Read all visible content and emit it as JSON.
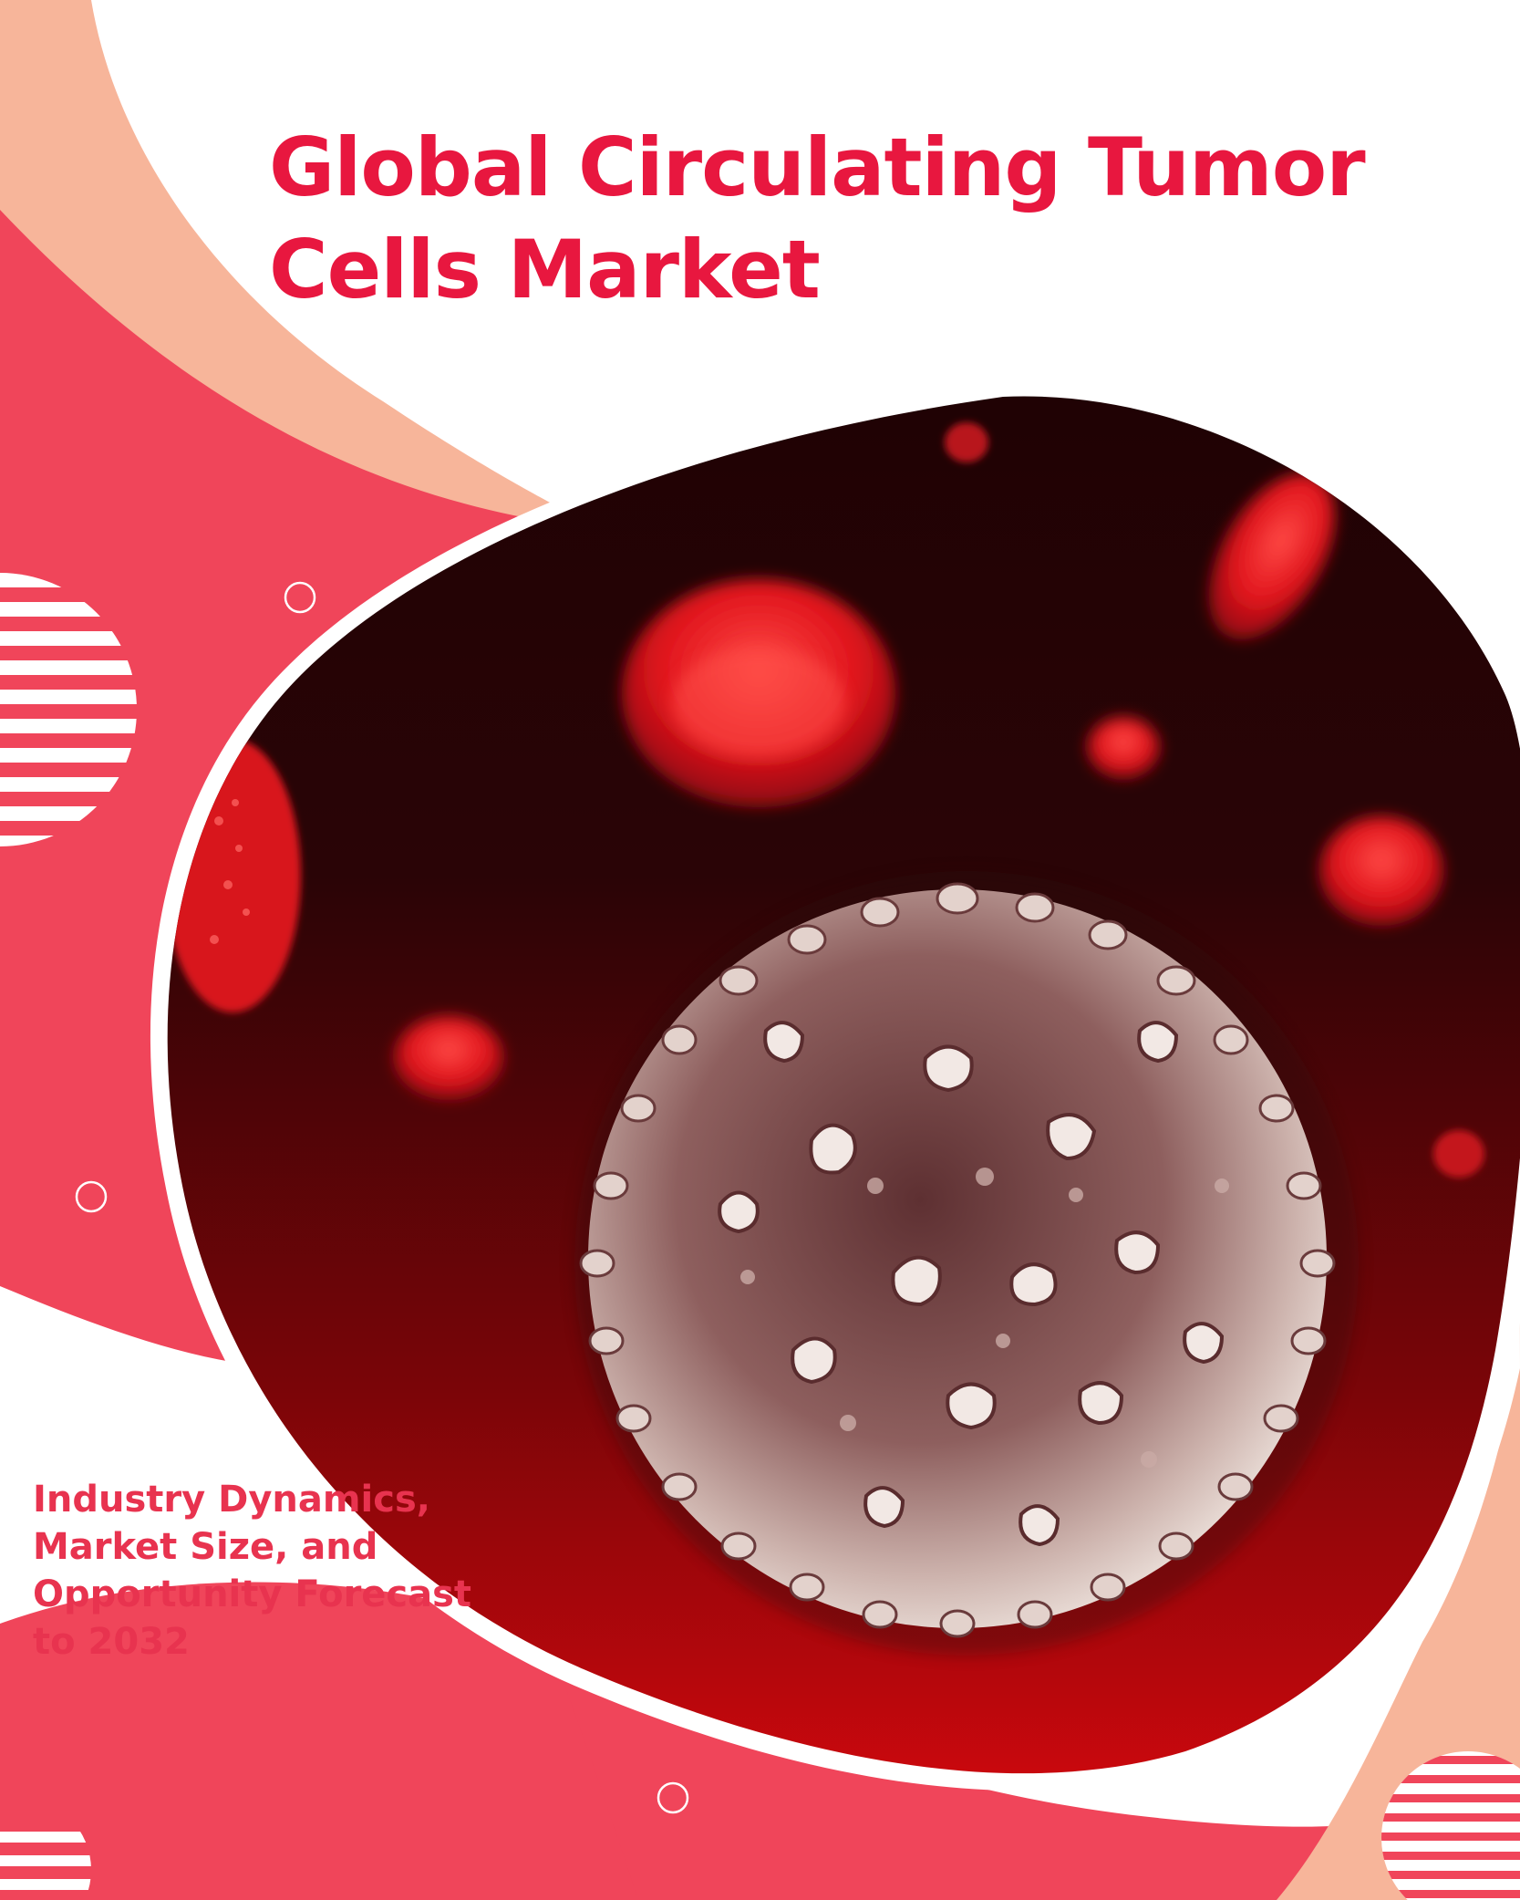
{
  "cover": {
    "title_lines": [
      "Global Circulating Tumor",
      "Cells Market"
    ],
    "subtitle_lines": [
      "Industry Dynamics,",
      "Market Size, and",
      "Opportunity Forecast",
      "to 2032"
    ]
  },
  "colors": {
    "accent_red": "#e8173f",
    "coral": "#f0455a",
    "peach": "#f7b59a",
    "blood_dark": "#2a0406",
    "blood_red": "#c70a12",
    "cell_white": "#e9dcd6"
  },
  "image": {
    "description_icon": "tumor-cell-micrograph",
    "decorations": [
      "striped-circle",
      "small-ring-circle"
    ]
  }
}
